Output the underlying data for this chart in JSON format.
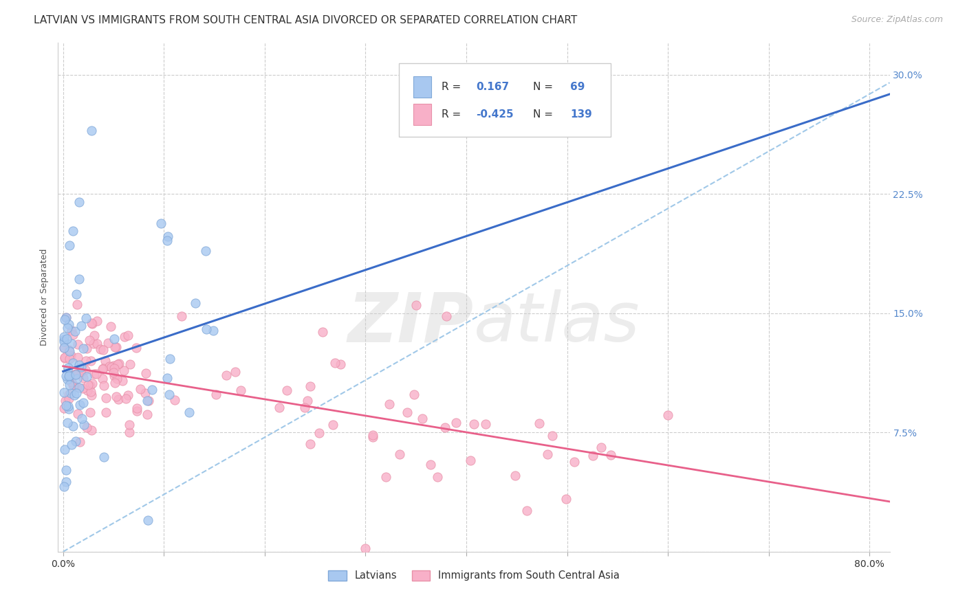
{
  "title": "LATVIAN VS IMMIGRANTS FROM SOUTH CENTRAL ASIA DIVORCED OR SEPARATED CORRELATION CHART",
  "source": "Source: ZipAtlas.com",
  "ylabel": "Divorced or Separated",
  "ylim": [
    0.0,
    0.32
  ],
  "xlim": [
    -0.005,
    0.82
  ],
  "latvian_R": 0.167,
  "latvian_N": 69,
  "immigrant_R": -0.425,
  "immigrant_N": 139,
  "latvian_color": "#A8C8F0",
  "latvian_edge": "#80A8D8",
  "immigrant_color": "#F8B0C8",
  "immigrant_edge": "#E890A8",
  "trend_latvian_color": "#3A6CC8",
  "trend_immigrant_color": "#E8608A",
  "trend_dashed_color": "#A0C8E8",
  "background_color": "#FFFFFF",
  "title_fontsize": 11,
  "source_fontsize": 9,
  "tick_fontsize": 10,
  "ylabel_fontsize": 9
}
